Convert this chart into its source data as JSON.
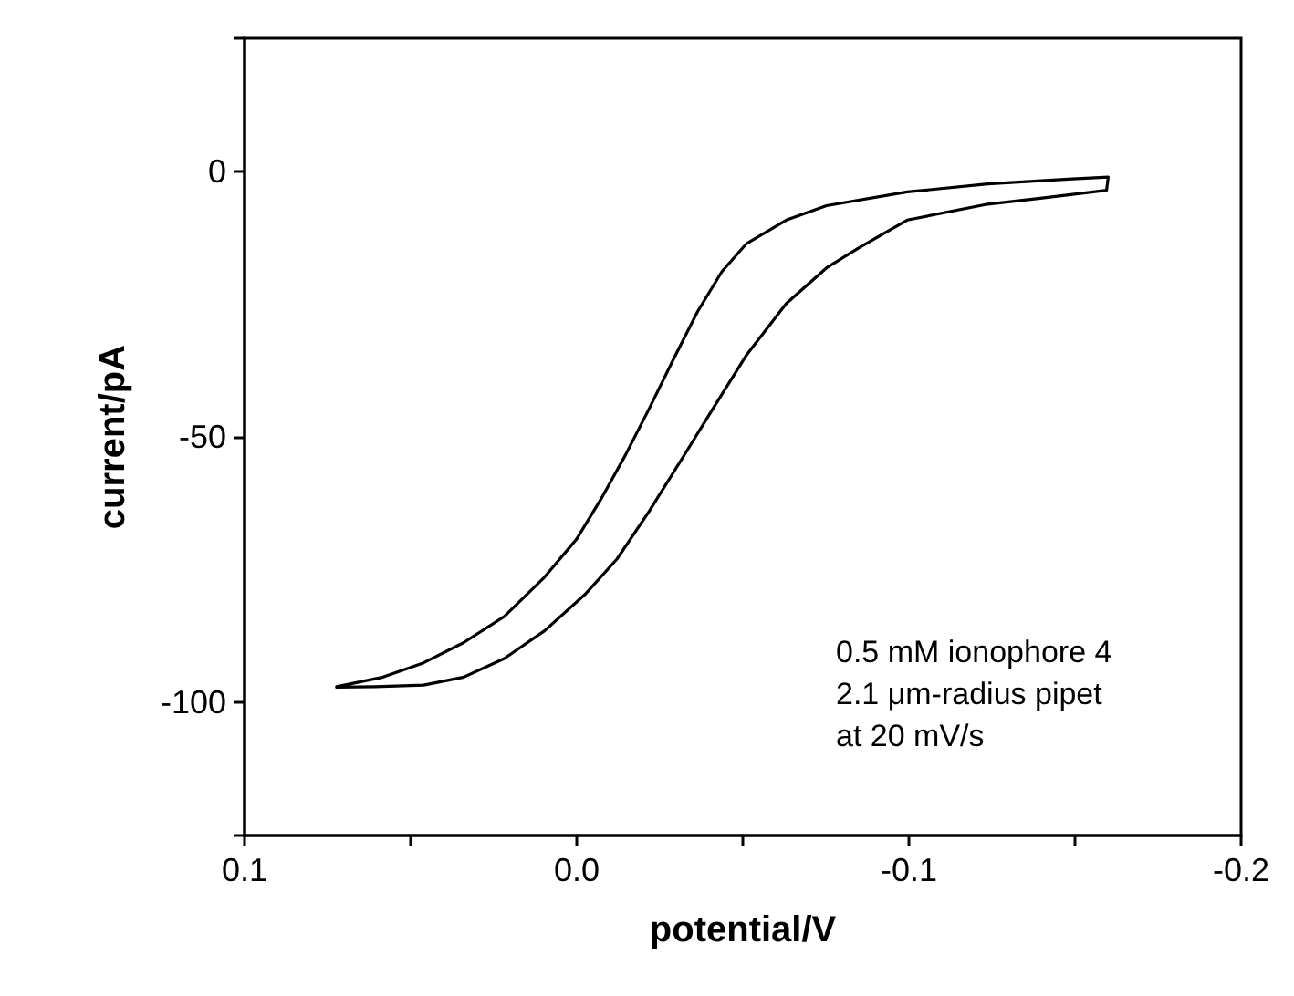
{
  "chart_data": {
    "type": "line",
    "xlabel": "potential/V",
    "ylabel": "current/pA",
    "xlim": [
      0.1,
      -0.2
    ],
    "ylim": [
      -125,
      25
    ],
    "xticks": [
      0.1,
      {
        "value": 0.05,
        "label": null
      },
      {
        "value": 0,
        "label": "0.0"
      },
      {
        "value": -0.05,
        "label": null
      },
      -0.1,
      {
        "value": -0.15,
        "label": null
      },
      -0.2
    ],
    "yticks": [
      {
        "value": 25,
        "label": null
      },
      0,
      -50,
      -100,
      {
        "value": -125,
        "label": null
      }
    ],
    "marker": "none",
    "line_style": "solid",
    "annotations": [
      "0.5 mM ionophore 4",
      "2.1 μm-radius pipet",
      "at 20 mV/s"
    ],
    "series": [
      {
        "color": "#000000",
        "x": [
          0.0723,
          0.0583,
          0.0461,
          0.034,
          0.0218,
          0.0097,
          0.0,
          -0.0073,
          -0.0146,
          -0.0218,
          -0.0291,
          -0.0364,
          -0.0437,
          -0.051,
          -0.0631,
          -0.0752,
          -0.0995,
          -0.1238,
          -0.148,
          -0.16,
          -0.1595,
          -0.1396,
          -0.1238,
          -0.0995,
          -0.085,
          -0.0752,
          -0.0631,
          -0.051,
          -0.0413,
          -0.0316,
          -0.0218,
          -0.0121,
          -0.0024,
          0.0097,
          0.0218,
          0.034,
          0.0461,
          0.0607,
          0.0723
        ],
        "values": [
          -97.0,
          -95.2,
          -92.5,
          -88.7,
          -83.8,
          -76.4,
          -69.2,
          -61.7,
          -53.5,
          -44.7,
          -35.4,
          -26.4,
          -18.9,
          -13.7,
          -9.2,
          -6.5,
          -3.9,
          -2.4,
          -1.5,
          -1.1,
          -3.6,
          -5.1,
          -6.2,
          -9.2,
          -14.4,
          -18.2,
          -24.9,
          -34.7,
          -44.4,
          -54.2,
          -64.0,
          -73.0,
          -79.7,
          -86.5,
          -91.7,
          -95.2,
          -96.7,
          -97.0,
          -97.1
        ]
      }
    ]
  }
}
